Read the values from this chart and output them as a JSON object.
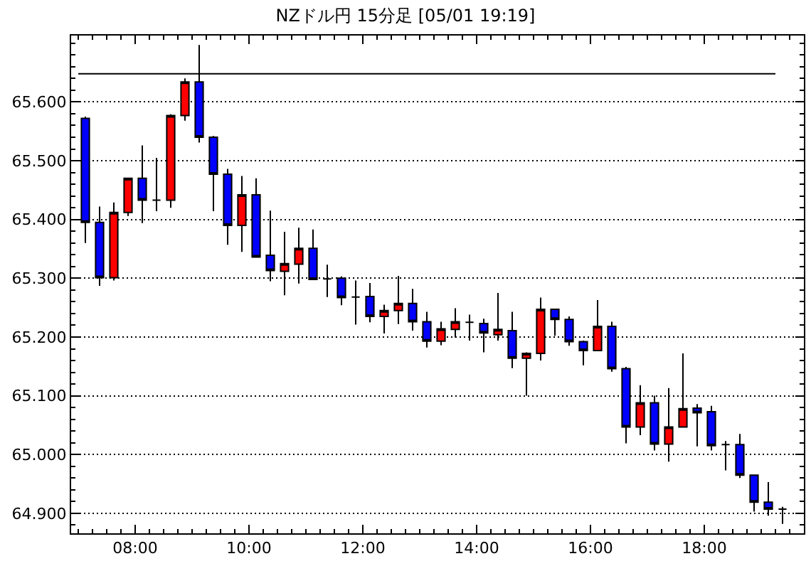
{
  "chart_data": {
    "type": "candlestick",
    "title": "NZドル円 15分足 [05/01 19:19]",
    "x": [
      7.125,
      7.375,
      7.625,
      7.875,
      8.125,
      8.375,
      8.625,
      8.875,
      9.125,
      9.375,
      9.625,
      9.875,
      10.125,
      10.375,
      10.625,
      10.875,
      11.125,
      11.375,
      11.625,
      11.875,
      12.125,
      12.375,
      12.625,
      12.875,
      13.125,
      13.375,
      13.625,
      13.875,
      14.125,
      14.375,
      14.625,
      14.875,
      15.125,
      15.375,
      15.625,
      15.875,
      16.125,
      16.375,
      16.625,
      16.875,
      17.125,
      17.375,
      17.625,
      17.875,
      18.125,
      18.375,
      18.625,
      18.875,
      19.125,
      19.375
    ],
    "ohlc": [
      [
        65.572,
        65.575,
        65.36,
        65.395
      ],
      [
        65.395,
        65.422,
        65.287,
        65.301
      ],
      [
        65.301,
        65.429,
        65.296,
        65.412
      ],
      [
        65.412,
        65.47,
        65.406,
        65.47
      ],
      [
        65.47,
        65.526,
        65.394,
        65.433
      ],
      [
        65.433,
        65.505,
        65.414,
        65.433
      ],
      [
        65.433,
        65.579,
        65.42,
        65.577
      ],
      [
        65.577,
        65.64,
        65.568,
        65.634
      ],
      [
        65.634,
        65.697,
        65.531,
        65.54
      ],
      [
        65.54,
        65.542,
        65.414,
        65.477
      ],
      [
        65.477,
        65.486,
        65.357,
        65.39
      ],
      [
        65.39,
        65.474,
        65.345,
        65.442
      ],
      [
        65.442,
        65.47,
        65.336,
        65.336
      ],
      [
        65.339,
        65.415,
        65.295,
        65.313
      ],
      [
        65.312,
        65.379,
        65.271,
        65.325
      ],
      [
        65.324,
        65.386,
        65.291,
        65.351
      ],
      [
        65.351,
        65.383,
        65.298,
        65.298
      ],
      [
        65.299,
        65.323,
        65.268,
        65.299
      ],
      [
        65.3,
        65.303,
        65.254,
        65.267
      ],
      [
        65.268,
        65.296,
        65.221,
        65.268
      ],
      [
        65.269,
        65.292,
        65.225,
        65.235
      ],
      [
        65.235,
        65.255,
        65.206,
        65.245
      ],
      [
        65.245,
        65.304,
        65.222,
        65.257
      ],
      [
        65.257,
        65.282,
        65.211,
        65.226
      ],
      [
        65.226,
        65.243,
        65.182,
        65.193
      ],
      [
        65.193,
        65.226,
        65.186,
        65.214
      ],
      [
        65.213,
        65.249,
        65.199,
        65.226
      ],
      [
        65.225,
        65.238,
        65.194,
        65.225
      ],
      [
        65.223,
        65.231,
        65.174,
        65.207
      ],
      [
        65.204,
        65.275,
        65.194,
        65.213
      ],
      [
        65.211,
        65.243,
        65.147,
        65.164
      ],
      [
        65.164,
        65.174,
        65.1,
        65.172
      ],
      [
        65.172,
        65.267,
        65.16,
        65.247
      ],
      [
        65.247,
        65.247,
        65.202,
        65.23
      ],
      [
        65.23,
        65.235,
        65.185,
        65.192
      ],
      [
        65.192,
        65.194,
        65.152,
        65.177
      ],
      [
        65.177,
        65.263,
        65.177,
        65.218
      ],
      [
        65.218,
        65.226,
        65.141,
        65.146
      ],
      [
        65.146,
        65.149,
        65.019,
        65.047
      ],
      [
        65.047,
        65.118,
        65.033,
        65.088
      ],
      [
        65.088,
        65.1,
        65.007,
        65.018
      ],
      [
        65.018,
        65.113,
        64.988,
        65.047
      ],
      [
        65.047,
        65.172,
        65.047,
        65.078
      ],
      [
        65.079,
        65.086,
        65.014,
        65.071
      ],
      [
        65.073,
        65.083,
        65.007,
        65.015
      ],
      [
        65.017,
        65.023,
        64.973,
        65.017
      ],
      [
        65.017,
        65.035,
        64.96,
        64.965
      ],
      [
        64.965,
        64.965,
        64.903,
        64.919
      ],
      [
        64.919,
        64.953,
        64.896,
        64.907
      ],
      [
        64.907,
        64.911,
        64.882,
        64.907
      ]
    ],
    "colors": [
      "#0000ff",
      "#0000ff",
      "#ff0000",
      "#ff0000",
      "#0000ff",
      "#000000",
      "#ff0000",
      "#ff0000",
      "#0000ff",
      "#0000ff",
      "#0000ff",
      "#ff0000",
      "#0000ff",
      "#0000ff",
      "#ff0000",
      "#ff0000",
      "#0000ff",
      "#000000",
      "#0000ff",
      "#000000",
      "#0000ff",
      "#ff0000",
      "#ff0000",
      "#0000ff",
      "#0000ff",
      "#ff0000",
      "#ff0000",
      "#000000",
      "#0000ff",
      "#ff0000",
      "#0000ff",
      "#ff0000",
      "#ff0000",
      "#0000ff",
      "#0000ff",
      "#0000ff",
      "#ff0000",
      "#0000ff",
      "#0000ff",
      "#ff0000",
      "#0000ff",
      "#ff0000",
      "#ff0000",
      "#0000ff",
      "#0000ff",
      "#000000",
      "#0000ff",
      "#0000ff",
      "#0000ff",
      "#000000"
    ],
    "xlim": [
      6.875,
      19.75
    ],
    "ylim": [
      64.866,
      65.713
    ],
    "xticks": [
      {
        "value": 7.0,
        "label": null
      },
      {
        "value": 7.25,
        "label": null
      },
      {
        "value": 7.5,
        "label": null
      },
      {
        "value": 7.75,
        "label": null
      },
      {
        "value": 8,
        "label": "08:00"
      },
      {
        "value": 8.25,
        "label": null
      },
      {
        "value": 8.5,
        "label": null
      },
      {
        "value": 8.75,
        "label": null
      },
      {
        "value": 9.0,
        "label": null
      },
      {
        "value": 9.25,
        "label": null
      },
      {
        "value": 9.5,
        "label": null
      },
      {
        "value": 9.75,
        "label": null
      },
      {
        "value": 10,
        "label": "10:00"
      },
      {
        "value": 10.25,
        "label": null
      },
      {
        "value": 10.5,
        "label": null
      },
      {
        "value": 10.75,
        "label": null
      },
      {
        "value": 11.0,
        "label": null
      },
      {
        "value": 11.25,
        "label": null
      },
      {
        "value": 11.5,
        "label": null
      },
      {
        "value": 11.75,
        "label": null
      },
      {
        "value": 12,
        "label": "12:00"
      },
      {
        "value": 12.25,
        "label": null
      },
      {
        "value": 12.5,
        "label": null
      },
      {
        "value": 12.75,
        "label": null
      },
      {
        "value": 13.0,
        "label": null
      },
      {
        "value": 13.25,
        "label": null
      },
      {
        "value": 13.5,
        "label": null
      },
      {
        "value": 13.75,
        "label": null
      },
      {
        "value": 14,
        "label": "14:00"
      },
      {
        "value": 14.25,
        "label": null
      },
      {
        "value": 14.5,
        "label": null
      },
      {
        "value": 14.75,
        "label": null
      },
      {
        "value": 15.0,
        "label": null
      },
      {
        "value": 15.25,
        "label": null
      },
      {
        "value": 15.5,
        "label": null
      },
      {
        "value": 15.75,
        "label": null
      },
      {
        "value": 16,
        "label": "16:00"
      },
      {
        "value": 16.25,
        "label": null
      },
      {
        "value": 16.5,
        "label": null
      },
      {
        "value": 16.75,
        "label": null
      },
      {
        "value": 17.0,
        "label": null
      },
      {
        "value": 17.25,
        "label": null
      },
      {
        "value": 17.5,
        "label": null
      },
      {
        "value": 17.75,
        "label": null
      },
      {
        "value": 18,
        "label": "18:00"
      },
      {
        "value": 18.25,
        "label": null
      },
      {
        "value": 18.5,
        "label": null
      },
      {
        "value": 18.75,
        "label": null
      },
      {
        "value": 19.0,
        "label": null
      },
      {
        "value": 19.25,
        "label": null
      },
      {
        "value": 19.5,
        "label": null
      }
    ],
    "yticks": [
      {
        "value": 64.88,
        "label": null
      },
      {
        "value": 64.9,
        "label": "64.900"
      },
      {
        "value": 64.92,
        "label": null
      },
      {
        "value": 64.94,
        "label": null
      },
      {
        "value": 64.96,
        "label": null
      },
      {
        "value": 64.98,
        "label": null
      },
      {
        "value": 65.0,
        "label": "65.000"
      },
      {
        "value": 65.02,
        "label": null
      },
      {
        "value": 65.04,
        "label": null
      },
      {
        "value": 65.06,
        "label": null
      },
      {
        "value": 65.08,
        "label": null
      },
      {
        "value": 65.1,
        "label": "65.100"
      },
      {
        "value": 65.12,
        "label": null
      },
      {
        "value": 65.14,
        "label": null
      },
      {
        "value": 65.16,
        "label": null
      },
      {
        "value": 65.18,
        "label": null
      },
      {
        "value": 65.2,
        "label": "65.200"
      },
      {
        "value": 65.22,
        "label": null
      },
      {
        "value": 65.24,
        "label": null
      },
      {
        "value": 65.26,
        "label": null
      },
      {
        "value": 65.28,
        "label": null
      },
      {
        "value": 65.3,
        "label": "65.300"
      },
      {
        "value": 65.32,
        "label": null
      },
      {
        "value": 65.34,
        "label": null
      },
      {
        "value": 65.36,
        "label": null
      },
      {
        "value": 65.38,
        "label": null
      },
      {
        "value": 65.4,
        "label": "65.400"
      },
      {
        "value": 65.42,
        "label": null
      },
      {
        "value": 65.44,
        "label": null
      },
      {
        "value": 65.46,
        "label": null
      },
      {
        "value": 65.48,
        "label": null
      },
      {
        "value": 65.5,
        "label": "65.500"
      },
      {
        "value": 65.52,
        "label": null
      },
      {
        "value": 65.54,
        "label": null
      },
      {
        "value": 65.56,
        "label": null
      },
      {
        "value": 65.58,
        "label": null
      },
      {
        "value": 65.6,
        "label": "65.600"
      },
      {
        "value": 65.62,
        "label": null
      },
      {
        "value": 65.64,
        "label": null
      },
      {
        "value": 65.66,
        "label": null
      },
      {
        "value": 65.68,
        "label": null
      },
      {
        "value": 65.7,
        "label": null
      }
    ],
    "grid": "y",
    "ref_lines": [
      {
        "axis": "y",
        "value": 65.648,
        "color": "#000000"
      }
    ]
  }
}
